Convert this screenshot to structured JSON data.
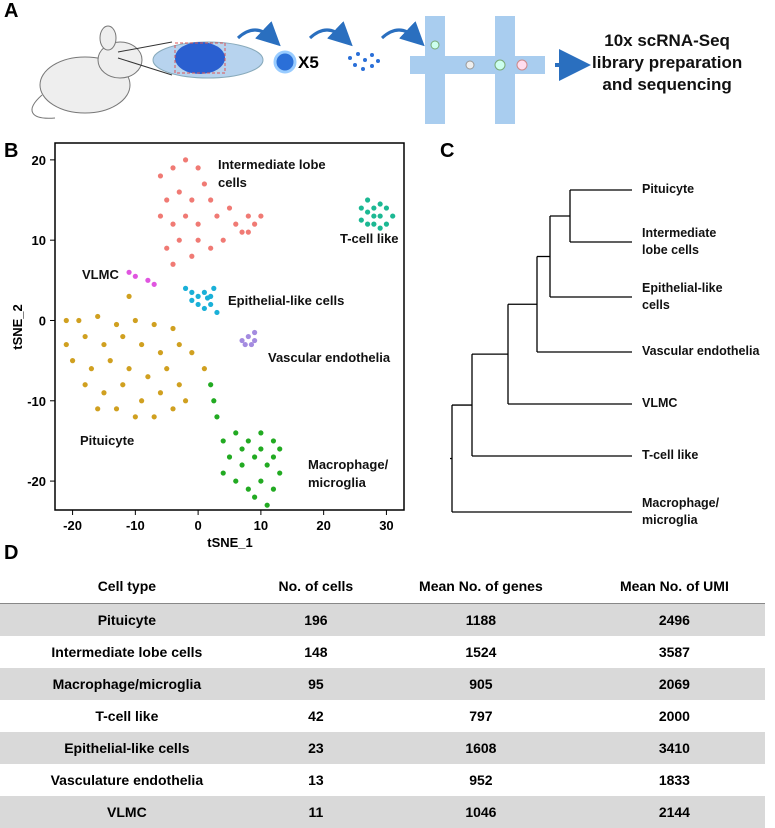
{
  "panel_labels": [
    "A",
    "B",
    "C",
    "D"
  ],
  "workflow": {
    "multiplier": "X5",
    "output": "10x scRNA-Seq\nlibrary preparation\nand sequencing"
  },
  "chart_data": {
    "type": "scatter",
    "xlabel": "tSNE_1",
    "ylabel": "tSNE_2",
    "xlim": [
      -22.8,
      32.8
    ],
    "ylim": [
      -23.6,
      22.1
    ],
    "xticks": [
      -20,
      -10,
      0,
      10,
      20,
      30
    ],
    "yticks": [
      -20,
      -10,
      0,
      10,
      20
    ],
    "series": [
      {
        "name": "Intermediate lobe\ncells",
        "color": "#f07a74",
        "x": [
          -6,
          -4,
          -2,
          0,
          1,
          -5,
          -3,
          -1,
          2,
          -6,
          -4,
          -2,
          0,
          3,
          5,
          6,
          8,
          9,
          7,
          4,
          -3,
          -1,
          -4,
          0,
          -5,
          2,
          8,
          10
        ],
        "values": [
          18,
          19,
          20,
          19,
          17,
          15,
          16,
          15,
          15,
          13,
          12,
          13,
          12,
          13,
          14,
          12,
          13,
          12,
          11,
          10,
          10,
          8,
          7,
          10,
          9,
          9,
          11,
          13
        ]
      },
      {
        "name": "T-cell like",
        "color": "#1cb893",
        "x": [
          26,
          27,
          28,
          29,
          30,
          27,
          28,
          29,
          30,
          26,
          28,
          31,
          27,
          29
        ],
        "values": [
          14,
          15,
          14,
          13,
          14,
          12,
          12,
          11.5,
          12,
          12.5,
          13,
          13,
          13.5,
          14.5
        ]
      },
      {
        "name": "VLMC",
        "color": "#e055e0",
        "x": [
          -11,
          -10,
          -8,
          -7
        ],
        "values": [
          6,
          5.5,
          5,
          4.5
        ]
      },
      {
        "name": "Epithelial-like cells",
        "color": "#1ab0d8",
        "x": [
          -2,
          -1,
          0,
          1,
          2,
          0,
          1,
          2,
          3,
          -1,
          2.5,
          1.5
        ],
        "values": [
          4,
          3.5,
          3,
          3.5,
          3,
          2,
          1.5,
          2,
          1,
          2.5,
          4,
          2.8
        ]
      },
      {
        "name": "Vascular endothelia",
        "color": "#a48be0",
        "x": [
          7,
          8,
          8.5,
          9,
          7.5,
          9
        ],
        "values": [
          -2.5,
          -2,
          -3,
          -1.5,
          -3,
          -2.5
        ]
      },
      {
        "name": "Pituicyte",
        "color": "#d0a020",
        "x": [
          -21,
          -19,
          -16,
          -13,
          -10,
          -7,
          -4,
          -21,
          -18,
          -15,
          -12,
          -9,
          -6,
          -3,
          -20,
          -17,
          -14,
          -11,
          -8,
          -5,
          -3,
          -18,
          -15,
          -12,
          -9,
          -6,
          -4,
          -13,
          -10,
          -7,
          -11,
          -16,
          -2,
          1,
          -1
        ],
        "values": [
          0,
          0,
          0.5,
          -0.5,
          0,
          -0.5,
          -1,
          -3,
          -2,
          -3,
          -2,
          -3,
          -4,
          -3,
          -5,
          -6,
          -5,
          -6,
          -7,
          -6,
          -8,
          -8,
          -9,
          -8,
          -10,
          -9,
          -11,
          -11,
          -12,
          -12,
          3,
          -11,
          -10,
          -6,
          -4
        ]
      },
      {
        "name": "Macrophage/\nmicroglia",
        "color": "#22aa22",
        "x": [
          2,
          2.5,
          3,
          4,
          6,
          8,
          10,
          12,
          13,
          5,
          7,
          9,
          11,
          13,
          6,
          8,
          10,
          12,
          9,
          11,
          7,
          12,
          4,
          10
        ],
        "values": [
          -8,
          -10,
          -12,
          -15,
          -14,
          -15,
          -14,
          -15,
          -16,
          -17,
          -18,
          -17,
          -18,
          -19,
          -20,
          -21,
          -20,
          -21,
          -22,
          -23,
          -16,
          -17,
          -19,
          -16
        ]
      }
    ]
  },
  "dendrogram": {
    "leaves": [
      "Pituicyte",
      "Intermediate\nlobe cells",
      "Epithelial-like\ncells",
      "Vascular endothelia",
      "VLMC",
      "T-cell like",
      "Macrophage/\nmicroglia"
    ]
  },
  "table": {
    "header": [
      "Cell type",
      "No. of cells",
      "Mean No. of genes",
      "Mean No. of UMI"
    ],
    "rows": [
      [
        "Pituicyte",
        196,
        1188,
        2496
      ],
      [
        "Intermediate lobe cells",
        148,
        1524,
        3587
      ],
      [
        "Macrophage/microglia",
        95,
        905,
        2069
      ],
      [
        "T-cell like",
        42,
        797,
        2000
      ],
      [
        "Epithelial-like cells",
        23,
        1608,
        3410
      ],
      [
        "Vasculature endothelia",
        13,
        952,
        1833
      ],
      [
        "VLMC",
        11,
        1046,
        2144
      ]
    ]
  }
}
